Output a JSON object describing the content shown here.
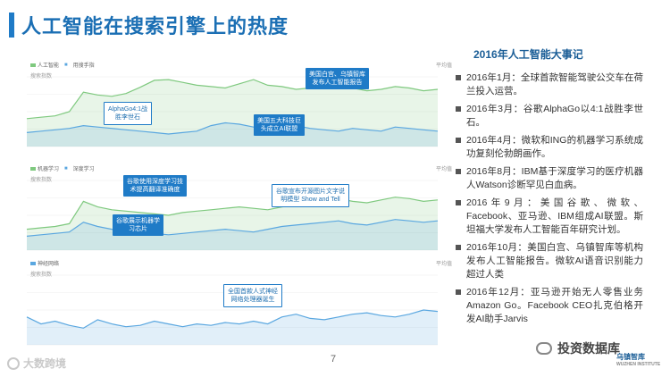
{
  "title": "人工智能在搜索引擎上的热度",
  "side": {
    "title": "2016年人工智能大事记",
    "events": [
      "2016年1月：全球首款智能驾驶公交车在荷兰投入运营。",
      "2016年3月：谷歌AlphaGo以4:1战胜李世石。",
      "2016年4月：微软和ING的机器学习系统成功复刻伦勃朗画作。",
      "2016年8月：IBM基于深度学习的医疗机器人Watson诊断罕见白血病。",
      "2016年9月：美国谷歌、微软、Facebook、亚马逊、IBM组成AI联盟。斯坦福大学发布人工智能百年研究计划。",
      "2016年10月：美国白宫、乌镇智库等机构发布人工智能报告。微软AI语音识别能力超过人类",
      "2016年12月：亚马逊开始无人零售业务Amazon Go。Facebook CEO扎克伯格开发AI助手Jarvis"
    ]
  },
  "chart_data": [
    {
      "type": "line",
      "legend": [
        "人工智能",
        "■",
        "用搜手指"
      ],
      "sublabel": "搜索指数",
      "right_label": "平均值",
      "series": [
        {
          "color": "#7fc97f",
          "values": [
            40,
            42,
            44,
            50,
            78,
            74,
            72,
            76,
            85,
            95,
            96,
            92,
            88,
            86,
            84,
            90,
            96,
            88,
            86,
            82,
            84,
            86,
            88,
            84,
            80,
            82,
            86,
            84,
            80,
            82
          ]
        },
        {
          "color": "#5aa7e0",
          "values": [
            20,
            22,
            24,
            26,
            30,
            28,
            26,
            24,
            22,
            20,
            18,
            20,
            22,
            30,
            34,
            32,
            28,
            26,
            24,
            30,
            26,
            24,
            22,
            26,
            24,
            22,
            28,
            26,
            24,
            22
          ]
        }
      ],
      "callouts": [
        {
          "text": "AlphaGo4:1战\n胜李世石",
          "style": "outline"
        },
        {
          "text": "美国白宫、乌镇智库\n发布人工智能报告",
          "style": "solid"
        },
        {
          "text": "美国五大科技巨\n头成立AI联盟",
          "style": "solid"
        }
      ]
    },
    {
      "type": "line",
      "legend": [
        "机器学习",
        "■",
        "深度学习"
      ],
      "sublabel": "搜索指数",
      "right_label": "平均值",
      "series": [
        {
          "color": "#7fc97f",
          "values": [
            30,
            32,
            34,
            38,
            70,
            62,
            58,
            56,
            54,
            52,
            50,
            54,
            56,
            58,
            60,
            62,
            60,
            58,
            62,
            66,
            70,
            72,
            74,
            70,
            68,
            72,
            76,
            74,
            70,
            72
          ]
        },
        {
          "color": "#5aa7e0",
          "values": [
            20,
            22,
            24,
            26,
            40,
            34,
            30,
            28,
            26,
            24,
            22,
            24,
            26,
            28,
            30,
            28,
            26,
            30,
            34,
            36,
            38,
            40,
            42,
            38,
            36,
            40,
            44,
            42,
            40,
            42
          ]
        }
      ],
      "callouts": [
        {
          "text": "谷歌使用深度学习技\n术提高翻译准确度",
          "style": "solid"
        },
        {
          "text": "谷歌展示机器学\n习芯片",
          "style": "solid"
        },
        {
          "text": "谷歌宣布开源图片文字说\n明模型 Show and Tell",
          "style": "outline"
        }
      ]
    },
    {
      "type": "line",
      "legend": [
        "神经网络"
      ],
      "sublabel": "搜索指数",
      "right_label": "平均值",
      "series": [
        {
          "color": "#5aa7e0",
          "values": [
            40,
            30,
            34,
            28,
            24,
            36,
            30,
            26,
            28,
            34,
            30,
            26,
            30,
            28,
            32,
            30,
            34,
            30,
            40,
            44,
            38,
            36,
            40,
            44,
            46,
            42,
            40,
            44,
            50,
            48
          ]
        }
      ],
      "callouts": [
        {
          "text": "全国首款人式神经\n网络处理器诞生",
          "style": "outline"
        }
      ]
    }
  ],
  "page_number": "7",
  "watermark_left": "大数跨境",
  "watermark_right": "投资数据库",
  "logo": {
    "name": "乌镇智库",
    "sub": "WUZHEN INSTITUTE"
  }
}
